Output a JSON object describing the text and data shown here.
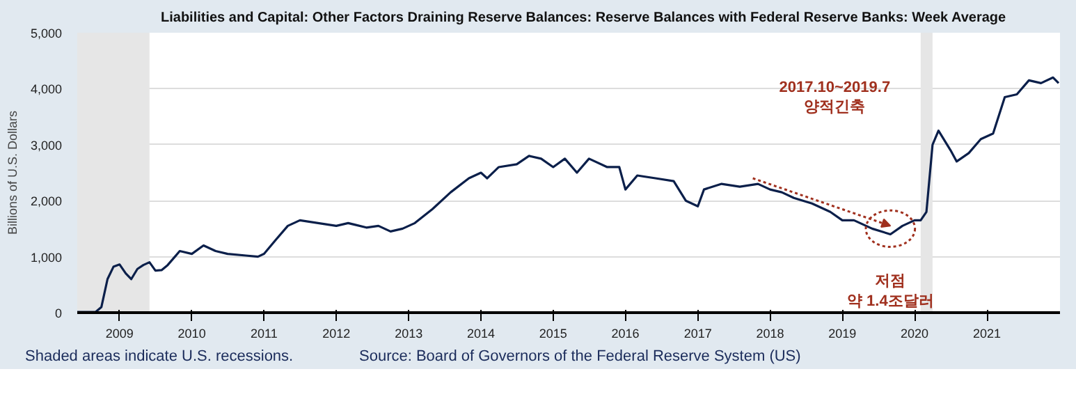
{
  "chart_data": {
    "type": "line",
    "title": "Liabilities and Capital: Other Factors Draining Reserve Balances: Reserve Balances with Federal Reserve Banks: Week Average",
    "ylabel": "Billions of U.S. Dollars",
    "x": [
      "2008-06",
      "2008-09",
      "2008-10",
      "2008-11",
      "2008-12",
      "2009-01",
      "2009-02",
      "2009-03",
      "2009-04",
      "2009-05",
      "2009-06",
      "2009-07",
      "2009-08",
      "2009-09",
      "2009-11",
      "2010-01",
      "2010-03",
      "2010-05",
      "2010-07",
      "2010-10",
      "2010-12",
      "2011-01",
      "2011-03",
      "2011-05",
      "2011-07",
      "2011-10",
      "2012-01",
      "2012-03",
      "2012-06",
      "2012-08",
      "2012-10",
      "2012-12",
      "2013-02",
      "2013-05",
      "2013-08",
      "2013-11",
      "2014-01",
      "2014-02",
      "2014-04",
      "2014-07",
      "2014-09",
      "2014-11",
      "2015-01",
      "2015-03",
      "2015-05",
      "2015-07",
      "2015-10",
      "2015-12",
      "2016-01",
      "2016-03",
      "2016-06",
      "2016-09",
      "2016-11",
      "2017-01",
      "2017-02",
      "2017-05",
      "2017-08",
      "2017-11",
      "2018-01",
      "2018-03",
      "2018-05",
      "2018-08",
      "2018-11",
      "2019-01",
      "2019-03",
      "2019-06",
      "2019-09",
      "2019-11",
      "2020-01",
      "2020-02",
      "2020-03",
      "2020-04",
      "2020-05",
      "2020-07",
      "2020-08",
      "2020-10",
      "2020-12",
      "2021-02",
      "2021-04",
      "2021-06",
      "2021-08",
      "2021-10",
      "2021-12",
      "2021-12-29"
    ],
    "series": [
      {
        "name": null,
        "color": "#0b1f4a",
        "values": [
          10,
          10,
          100,
          600,
          820,
          860,
          700,
          600,
          780,
          850,
          900,
          750,
          760,
          850,
          1100,
          1050,
          1200,
          1100,
          1050,
          1020,
          1000,
          1050,
          1300,
          1550,
          1650,
          1600,
          1550,
          1600,
          1520,
          1550,
          1450,
          1500,
          1600,
          1850,
          2150,
          2400,
          2500,
          2400,
          2600,
          2650,
          2800,
          2750,
          2600,
          2750,
          2500,
          2750,
          2600,
          2600,
          2200,
          2450,
          2400,
          2350,
          2000,
          1900,
          2200,
          2300,
          2250,
          2300,
          2200,
          2150,
          2050,
          1950,
          1800,
          1650,
          1650,
          1500,
          1400,
          1550,
          1650,
          1650,
          1800,
          3000,
          3250,
          2900,
          2700,
          2850,
          3100,
          3200,
          3850,
          3900,
          4150,
          4100,
          4200,
          4100
        ]
      }
    ],
    "xlim": [
      "2008-06-01",
      "2022-01-05"
    ],
    "ylim": [
      0,
      5000
    ],
    "xticks": [
      "2009",
      "2010",
      "2011",
      "2012",
      "2013",
      "2014",
      "2015",
      "2016",
      "2017",
      "2018",
      "2019",
      "2020",
      "2021"
    ],
    "yticks": [
      0,
      {
        "value": 1000,
        "label": "1,000"
      },
      {
        "value": 2000,
        "label": "2,000"
      },
      {
        "value": 3000,
        "label": "3,000"
      },
      {
        "value": 4000,
        "label": "4,000"
      },
      {
        "value": 5000,
        "label": "5,000"
      }
    ],
    "bands": [
      {
        "axis": "x",
        "from": "2008-06-01",
        "to": "2009-06",
        "color": "#e6e6e6"
      },
      {
        "axis": "x",
        "from": "2020-02",
        "to": "2020-04",
        "color": "#e6e6e6"
      }
    ],
    "grid": "y",
    "annotations": [
      "2017.10~2019.7\n양적긴축",
      {
        "text": "저점\n약 1.4조달러",
        "x": "2019-09",
        "y": 1400
      },
      "Shaded areas indicate U.S. recessions.",
      "Source: Board of Governors of the Federal Reserve System (US)"
    ]
  }
}
